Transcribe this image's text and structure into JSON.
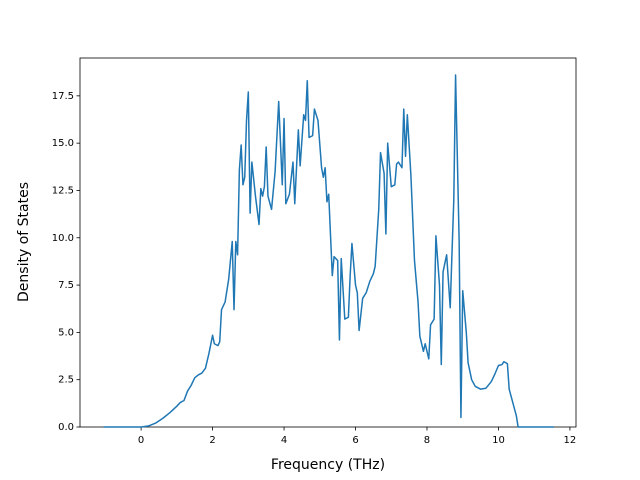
{
  "chart_data": {
    "type": "line",
    "x_label": "Frequency (THz)",
    "y_label": "Density of States",
    "color": "#1f77b4",
    "x": [
      -1.05,
      -0.5,
      0,
      0.2,
      0.4,
      0.6,
      0.8,
      1.0,
      1.1,
      1.2,
      1.3,
      1.4,
      1.5,
      1.6,
      1.7,
      1.8,
      1.9,
      2.0,
      2.05,
      2.15,
      2.2,
      2.25,
      2.35,
      2.45,
      2.55,
      2.6,
      2.65,
      2.7,
      2.75,
      2.8,
      2.85,
      2.9,
      2.95,
      3.0,
      3.05,
      3.1,
      3.2,
      3.3,
      3.35,
      3.4,
      3.45,
      3.5,
      3.55,
      3.65,
      3.75,
      3.85,
      3.95,
      4.0,
      4.05,
      4.15,
      4.25,
      4.3,
      4.4,
      4.45,
      4.55,
      4.6,
      4.65,
      4.7,
      4.8,
      4.85,
      4.95,
      5.05,
      5.1,
      5.15,
      5.2,
      5.25,
      5.35,
      5.4,
      5.5,
      5.55,
      5.6,
      5.7,
      5.8,
      5.85,
      5.9,
      6.0,
      6.05,
      6.1,
      6.2,
      6.3,
      6.4,
      6.5,
      6.55,
      6.65,
      6.7,
      6.8,
      6.85,
      6.9,
      7.0,
      7.1,
      7.15,
      7.2,
      7.3,
      7.35,
      7.4,
      7.45,
      7.55,
      7.65,
      7.75,
      7.8,
      7.9,
      7.95,
      8.05,
      8.1,
      8.2,
      8.25,
      8.35,
      8.4,
      8.45,
      8.55,
      8.65,
      8.7,
      8.75,
      8.8,
      8.9,
      8.95,
      9.0,
      9.1,
      9.15,
      9.25,
      9.35,
      9.5,
      9.65,
      9.8,
      9.9,
      10.0,
      10.1,
      10.15,
      10.25,
      10.3,
      10.4,
      10.5,
      10.55,
      11.0,
      11.55
    ],
    "values": [
      0,
      0,
      0,
      0.05,
      0.2,
      0.45,
      0.75,
      1.1,
      1.3,
      1.4,
      1.9,
      2.2,
      2.6,
      2.75,
      2.85,
      3.1,
      3.9,
      4.85,
      4.4,
      4.3,
      4.5,
      6.2,
      6.6,
      7.8,
      9.8,
      6.2,
      9.8,
      9.1,
      13.6,
      14.9,
      12.8,
      13.2,
      16.2,
      17.7,
      11.3,
      14.0,
      12.2,
      10.7,
      12.6,
      12.2,
      12.7,
      14.8,
      12.2,
      11.5,
      13.5,
      17.2,
      12.8,
      16.3,
      11.8,
      12.3,
      14.0,
      11.8,
      15.7,
      13.8,
      16.5,
      16.2,
      18.3,
      15.3,
      15.4,
      16.8,
      16.2,
      13.7,
      13.2,
      13.7,
      11.9,
      12.3,
      8.0,
      9.0,
      8.8,
      4.6,
      8.9,
      5.7,
      5.8,
      8.0,
      9.7,
      7.5,
      7.1,
      5.1,
      6.8,
      7.1,
      7.7,
      8.1,
      8.5,
      11.5,
      14.5,
      13.4,
      10.2,
      15.0,
      12.7,
      12.8,
      13.9,
      14.0,
      13.7,
      16.8,
      14.3,
      16.5,
      13.3,
      8.8,
      6.6,
      4.8,
      4.0,
      4.4,
      3.6,
      5.4,
      5.7,
      10.1,
      7.5,
      3.3,
      8.2,
      9.1,
      6.3,
      9.2,
      12.0,
      18.6,
      9.8,
      0.5,
      7.2,
      5.0,
      3.4,
      2.5,
      2.15,
      2.0,
      2.05,
      2.4,
      2.8,
      3.25,
      3.3,
      3.45,
      3.35,
      2.0,
      1.3,
      0.6,
      0,
      0,
      0
    ],
    "xlim": [
      -1.71,
      12.17
    ],
    "xticks": [
      0,
      2,
      4,
      6,
      8,
      10,
      12
    ],
    "ylim": [
      0,
      19.5
    ],
    "yticks": [
      {
        "value": 0,
        "label": "0.0"
      },
      {
        "value": 2.5,
        "label": "2.5"
      },
      {
        "value": 5,
        "label": "5.0"
      },
      {
        "value": 7.5,
        "label": "7.5"
      },
      {
        "value": 10,
        "label": "10.0"
      },
      {
        "value": 12.5,
        "label": "12.5"
      },
      {
        "value": 15,
        "label": "15.0"
      },
      {
        "value": 17.5,
        "label": "17.5"
      }
    ]
  }
}
